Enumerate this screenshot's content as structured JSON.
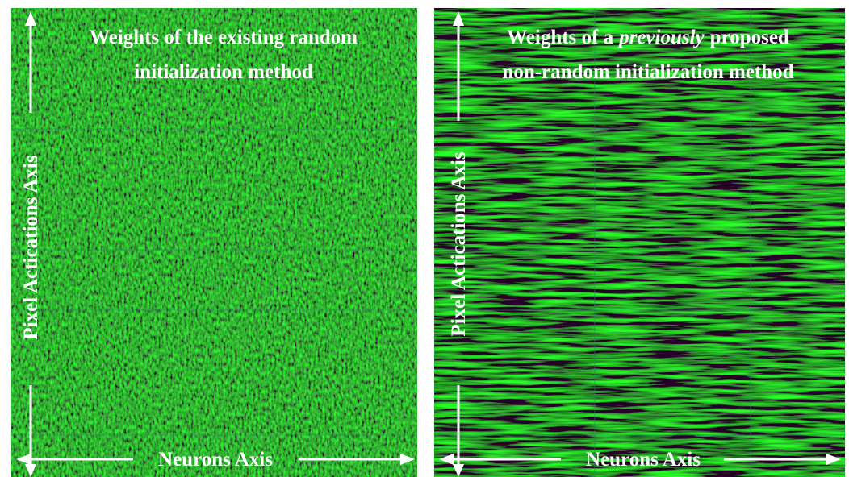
{
  "panels": [
    {
      "title_line1": "Weights of the existing random",
      "title_line2": "initialization method",
      "y_axis_label": "Pixel Actications Axis",
      "x_axis_label": "Neurons Axis"
    },
    {
      "title_line1_parts": [
        "Weights of a",
        "previously",
        "proposed"
      ],
      "title_line2": "non-random initialization method",
      "y_axis_label": "Pixel Actications Axis",
      "x_axis_label": "Neurons Axis"
    }
  ]
}
